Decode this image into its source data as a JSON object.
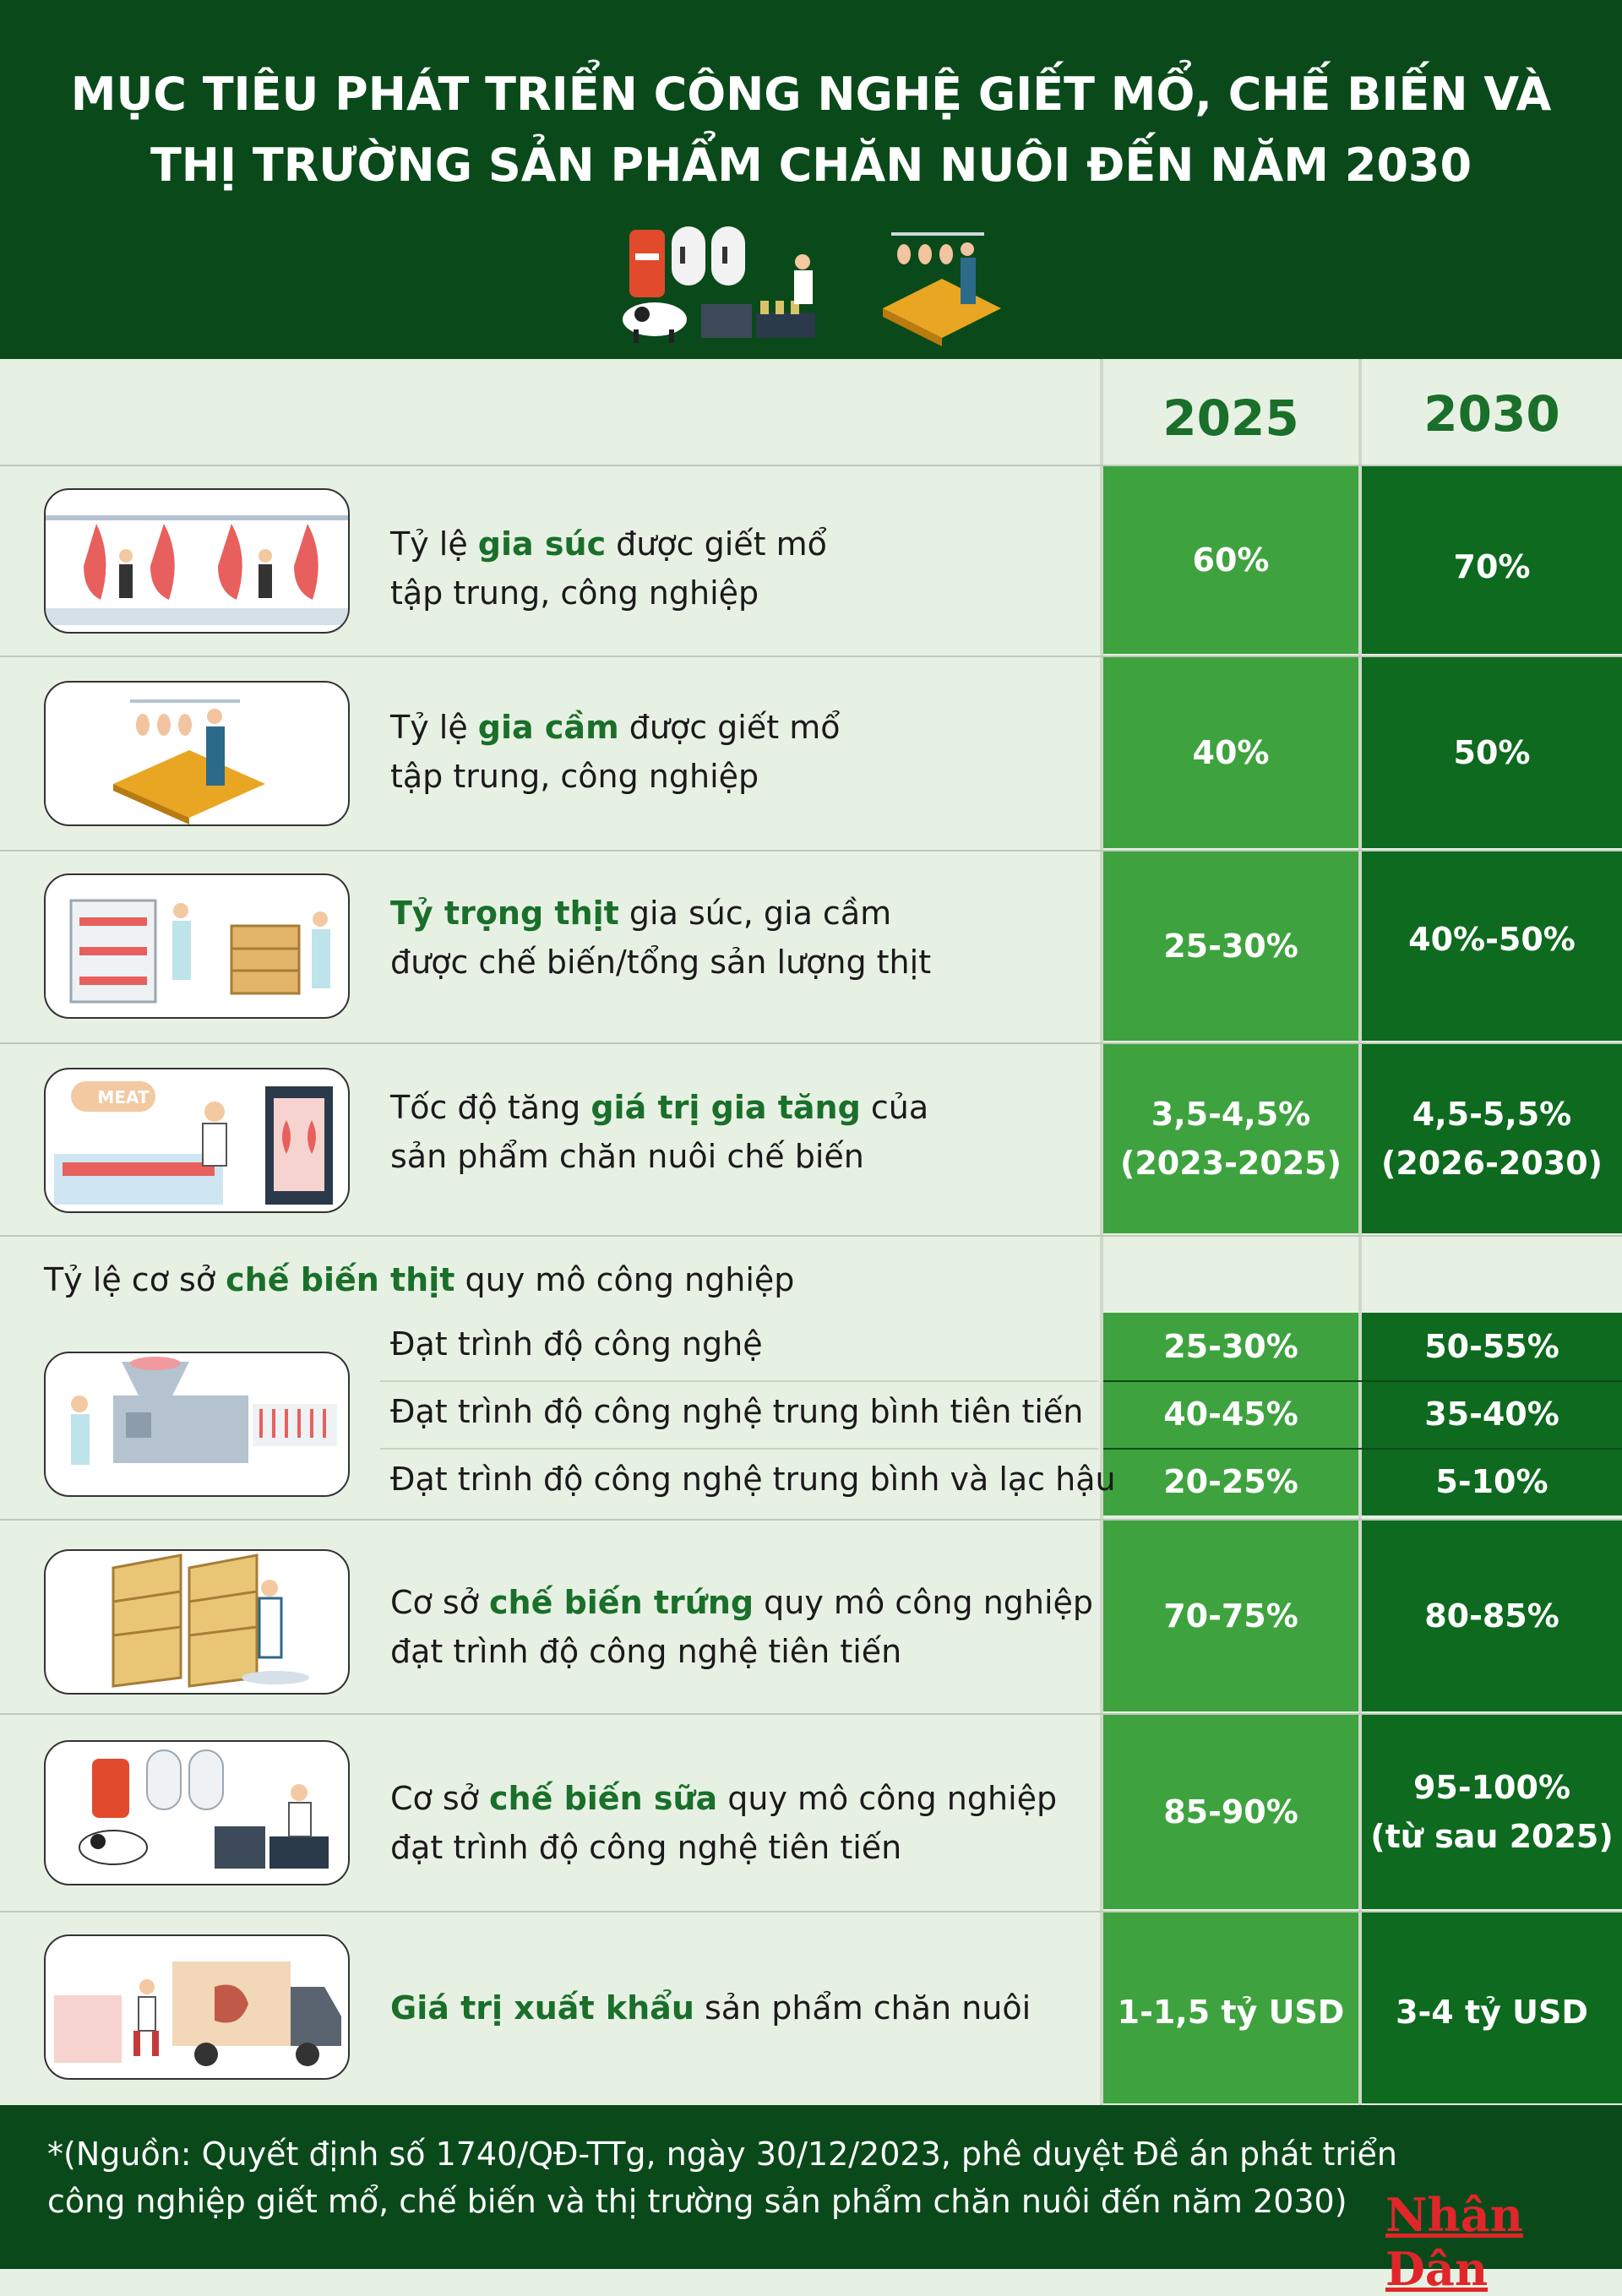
{
  "title_line1": "MỤC TIÊU PHÁT TRIỂN CÔNG NGHỆ GIẾT MỔ, CHẾ BIẾN VÀ",
  "title_line2": "THỊ TRƯỜNG SẢN PHẨM CHĂN NUÔI ĐẾN NĂM 2030",
  "years": {
    "y1": "2025",
    "y2": "2030"
  },
  "rows": [
    {
      "pre": "Tỷ lệ ",
      "hl": "gia súc",
      "post": " được giết mổ",
      "line2": "tập trung, công nghiệp",
      "v2025": "60%",
      "v2030": "70%"
    },
    {
      "pre": "Tỷ lệ ",
      "hl": "gia cầm",
      "post": " được giết mổ",
      "line2": "tập trung, công nghiệp",
      "v2025": "40%",
      "v2030": "50%"
    },
    {
      "pre": "",
      "hl": "Tỷ trọng thịt",
      "post": " gia súc, gia cầm",
      "line2": "được chế biến/tổng sản lượng thịt",
      "v2025": "25-30%",
      "v2030": "40%-50%"
    },
    {
      "pre": "Tốc độ tăng ",
      "hl": "giá trị gia tăng",
      "post": " của",
      "line2": "sản phẩm chăn nuôi chế biến",
      "v2025_l1": "3,5-4,5%",
      "v2025_l2": "(2023-2025)",
      "v2030_l1": "4,5-5,5%",
      "v2030_l2": "(2026-2030)"
    }
  ],
  "section": {
    "pre": "Tỷ lệ cơ sở ",
    "hl": "chế biến thịt",
    "post": " quy mô công nghiệp"
  },
  "subrows": [
    {
      "label": "Đạt trình độ công nghệ",
      "v2025": "25-30%",
      "v2030": "50-55%"
    },
    {
      "label": "Đạt trình độ công nghệ trung bình tiên tiến",
      "v2025": "40-45%",
      "v2030": "35-40%"
    },
    {
      "label": "Đạt trình độ công nghệ trung bình và lạc hậu",
      "v2025": "20-25%",
      "v2030": "5-10%"
    }
  ],
  "rows2": [
    {
      "pre": "Cơ sở ",
      "hl": "chế biến trứng",
      "post": " quy mô công nghiệp",
      "line2": "đạt trình độ công nghệ tiên tiến",
      "v2025": "70-75%",
      "v2030": "80-85%"
    },
    {
      "pre": "Cơ sở ",
      "hl": "chế biến sữa",
      "post": " quy mô công nghiệp",
      "line2": "đạt trình độ công nghệ tiên tiến",
      "v2025": "85-90%",
      "v2030_l1": "95-100%",
      "v2030_l2": "(từ sau 2025)"
    },
    {
      "pre": "",
      "hl": "Giá trị xuất khẩu",
      "post": " sản phẩm chăn nuôi",
      "v2025": "1-1,5 tỷ USD",
      "v2030": "3-4 tỷ USD"
    }
  ],
  "meat_sign": "MEAT",
  "footnote": "*(Nguồn: Quyết định số 1740/QĐ-TTg, ngày 30/12/2023, phê duyệt Đề án phát triển công nghiệp giết mổ, chế biến và thị trường sản phẩm chăn nuôi đến năm 2030)",
  "logo": "Nhân Dân",
  "colors": {
    "dark_green": "#0a4a1a",
    "col2025": "#3ea33f",
    "col2030": "#0d6a1e",
    "highlight_text": "#1a6f2a",
    "logo_red": "#e1262b"
  }
}
